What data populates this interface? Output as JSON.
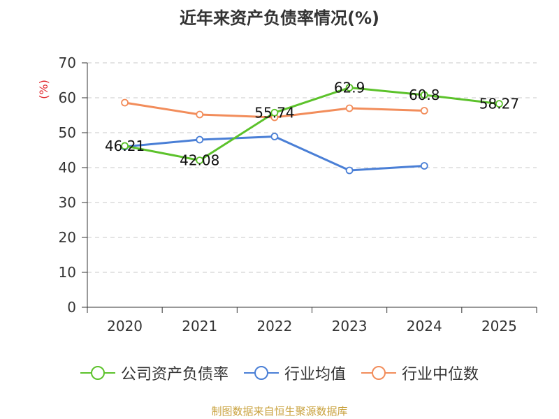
{
  "chart_data": {
    "type": "line",
    "title": "近年来资产负债率情况(%)",
    "ylabel": "(%)",
    "xlabel": "",
    "categories": [
      "2020",
      "2021",
      "2022",
      "2023",
      "2024",
      "2025"
    ],
    "ylim": [
      0,
      70
    ],
    "yticks": [
      0,
      10,
      20,
      30,
      40,
      50,
      60,
      70
    ],
    "grid": "horizontal dashed",
    "legend_position": "bottom",
    "series": [
      {
        "name": "公司资产负债率",
        "color": "#5cc22b",
        "values": [
          46.21,
          42.08,
          55.74,
          62.9,
          60.8,
          58.27
        ],
        "labels": [
          "46.21",
          "42.08",
          "55.74",
          "62.9",
          "60.8",
          "58.27"
        ]
      },
      {
        "name": "行业均值",
        "color": "#4a7fd6",
        "values": [
          46.0,
          48.0,
          48.9,
          39.2,
          40.5,
          null
        ]
      },
      {
        "name": "行业中位数",
        "color": "#f28d5b",
        "values": [
          58.6,
          55.2,
          54.4,
          57.0,
          56.3,
          null
        ]
      }
    ]
  },
  "source": "制图数据来自恒生聚源数据库"
}
